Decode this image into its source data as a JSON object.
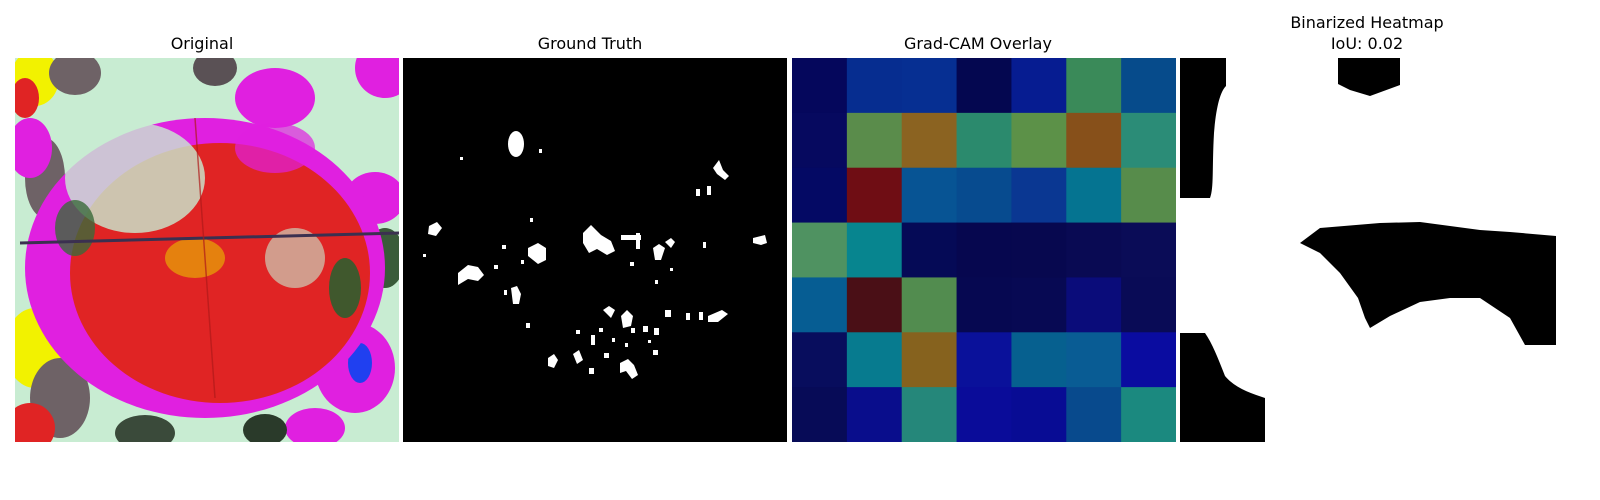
{
  "panels": [
    {
      "title": "Original"
    },
    {
      "title": "Ground Truth"
    },
    {
      "title": "Grad-CAM Overlay"
    },
    {
      "title": "Binarized Heatmap",
      "subtitle": "IoU: 0.02"
    }
  ],
  "iou": 0.02,
  "gradcam_grid": [
    [
      "#05075c",
      "#062d90",
      "#062f92",
      "#040750",
      "#061c91",
      "#3a8a59",
      "#064b8b"
    ],
    [
      "#06095f",
      "#5a8c4b",
      "#8b6321",
      "#2b8a6d",
      "#5c9148",
      "#87501a",
      "#2b8c77"
    ],
    [
      "#040964",
      "#6f0d14",
      "#075494",
      "#074b8f",
      "#0a3792",
      "#057491",
      "#578c4b"
    ],
    [
      "#4f9261",
      "#07858f",
      "#050a56",
      "#06074f",
      "#07084f",
      "#090a53",
      "#0a0c57"
    ],
    [
      "#065d93",
      "#4a0f16",
      "#528c4f",
      "#060851",
      "#070953",
      "#0a0c7a",
      "#090b56"
    ],
    [
      "#080d5d",
      "#077b8f",
      "#86621e",
      "#0a119a",
      "#06608f",
      "#095c94",
      "#0a0ca0"
    ],
    [
      "#070b57",
      "#090d8c",
      "#25877a",
      "#0a0c99",
      "#080c94",
      "#084a8d",
      "#1b897f"
    ]
  ],
  "colors": {
    "leaf_red": "#e02424",
    "magenta": "#e020e0",
    "mint": "#c8ecd2",
    "yellow": "#f2f200",
    "gray_brown": "#6e6266"
  }
}
